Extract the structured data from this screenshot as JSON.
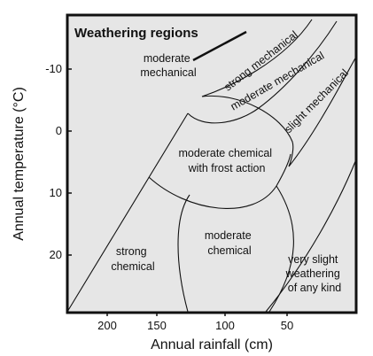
{
  "diagram": {
    "title": "Weathering regions",
    "x_axis": {
      "label": "Annual rainfall (cm)",
      "ticks": [
        "200",
        "150",
        "100",
        "50"
      ]
    },
    "y_axis": {
      "label": "Annual temperature (°C)",
      "ticks": [
        "-10",
        "0",
        "10",
        "20"
      ]
    },
    "regions": {
      "moderate_mechanical": [
        "moderate",
        "mechanical"
      ],
      "strong_mechanical": "strong mechanical",
      "moderate_mechanical_band": "moderate  mechanical",
      "slight_mechanical": "slight  mechanical",
      "moderate_chemical_frost": [
        "moderate chemical",
        "with frost action"
      ],
      "strong_chemical": [
        "strong",
        "chemical"
      ],
      "moderate_chemical": [
        "moderate",
        "chemical"
      ],
      "very_slight": [
        "very slight",
        "weathering",
        "of any kind"
      ]
    },
    "colors": {
      "plot_background": "#e6e6e6",
      "line": "#111111"
    }
  }
}
